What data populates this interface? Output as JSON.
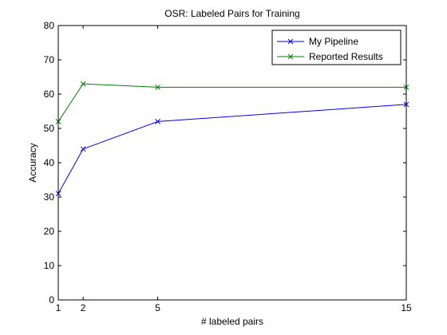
{
  "chart_data": {
    "type": "line",
    "title": "OSR: Labeled Pairs for Training",
    "xlabel": "# labeled pairs",
    "ylabel": "Accuracy",
    "x": [
      1,
      2,
      5,
      15
    ],
    "xlim": [
      1,
      15
    ],
    "ylim": [
      0,
      80
    ],
    "xticks": [
      1,
      2,
      5,
      15
    ],
    "yticks": [
      0,
      10,
      20,
      30,
      40,
      50,
      60,
      70,
      80
    ],
    "grid": false,
    "legend": "top-right",
    "marker": "x",
    "series": [
      {
        "name": "My Pipeline",
        "values": [
          31,
          44,
          52,
          57
        ],
        "color": "#0000ff"
      },
      {
        "name": "Reported Results",
        "values": [
          52,
          63,
          62,
          62
        ],
        "color": "#008000"
      }
    ]
  }
}
